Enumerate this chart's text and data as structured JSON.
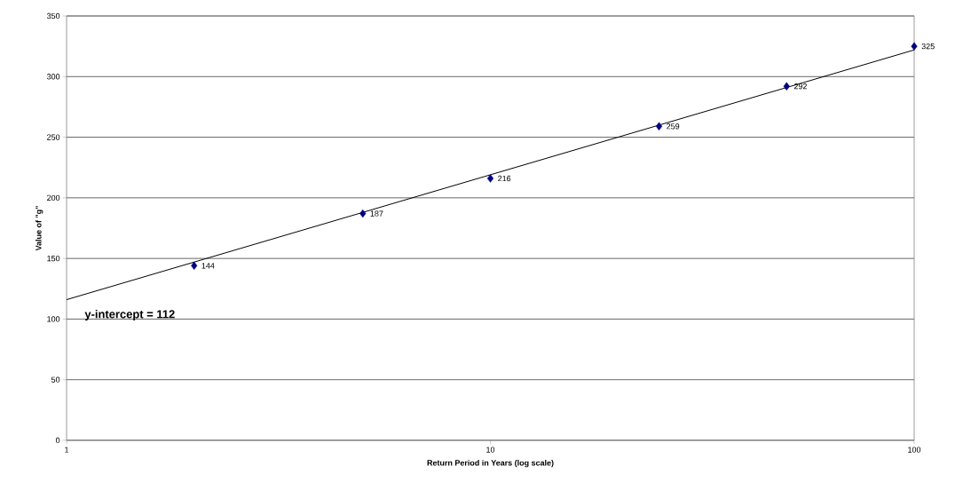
{
  "chart_data": {
    "type": "scatter",
    "xlabel": "Return Period in Years (log scale)",
    "ylabel": "Value of \"g\"",
    "log": "x",
    "xlim": [
      1,
      100
    ],
    "xticks": [
      1,
      10,
      100
    ],
    "ylim": [
      0,
      350
    ],
    "yticks": [
      0,
      50,
      100,
      150,
      200,
      250,
      300,
      350
    ],
    "grid": "y",
    "annotations": [
      "y-intercept = 112"
    ],
    "series": [
      {
        "x": [
          2,
          5,
          10,
          25,
          50,
          100
        ],
        "values": [
          144,
          187,
          216,
          259,
          292,
          325
        ],
        "value_labels": [
          "144",
          "187",
          "216",
          "259",
          "292",
          "325"
        ],
        "color": "#000080",
        "marker": "diamond"
      },
      {
        "type": "line",
        "x": [
          1,
          100
        ],
        "values": [
          116,
          322
        ],
        "color": "#000000",
        "marker": "none",
        "line_style": "solid"
      }
    ]
  }
}
